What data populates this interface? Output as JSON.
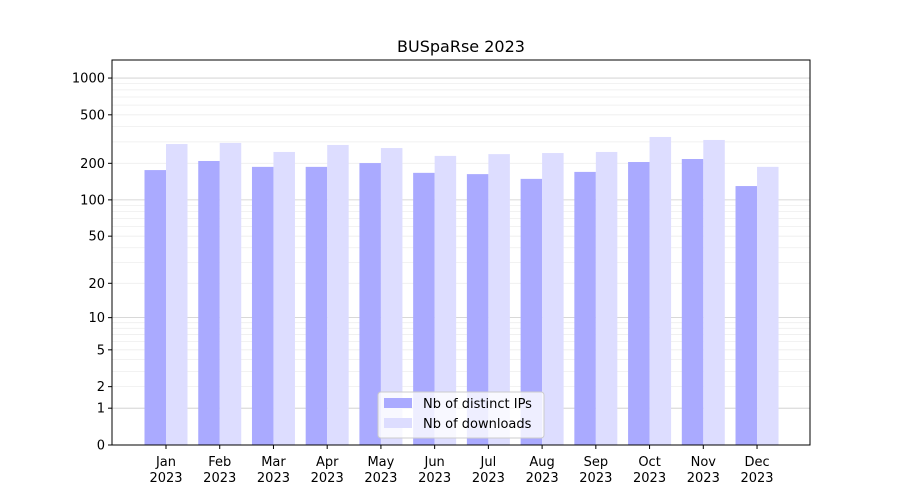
{
  "chart_data": {
    "type": "bar",
    "title": "BUSpaRse 2023",
    "xlabel": "",
    "ylabel": "",
    "yscale": "log(1+y)",
    "ylim": [
      0,
      1400
    ],
    "yticks": [
      0,
      1,
      2,
      5,
      10,
      20,
      50,
      100,
      200,
      500,
      1000
    ],
    "grid": true,
    "legend_position": "bottom-center",
    "categories": [
      "Jan\n2023",
      "Feb\n2023",
      "Mar\n2023",
      "Apr\n2023",
      "May\n2023",
      "Jun\n2023",
      "Jul\n2023",
      "Aug\n2023",
      "Sep\n2023",
      "Oct\n2023",
      "Nov\n2023",
      "Dec\n2023"
    ],
    "series": [
      {
        "name": "Nb of distinct IPs",
        "color": "#aaaaff",
        "values": [
          176,
          209,
          187,
          187,
          201,
          167,
          163,
          149,
          170,
          205,
          217,
          130
        ]
      },
      {
        "name": "Nb of downloads",
        "color": "#ddddff",
        "values": [
          288,
          294,
          248,
          283,
          267,
          230,
          238,
          243,
          248,
          329,
          311,
          187
        ]
      }
    ]
  }
}
